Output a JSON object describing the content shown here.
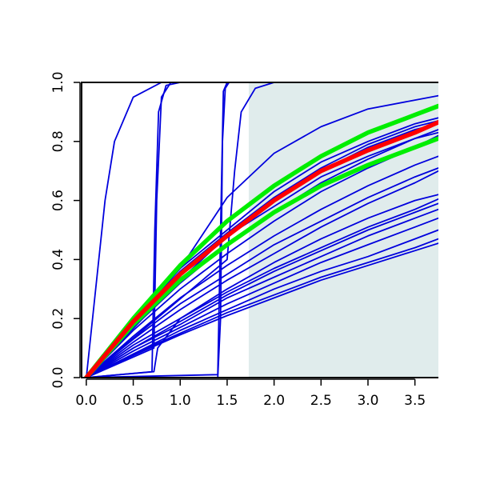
{
  "chart_data": {
    "type": "line",
    "title": "",
    "xlabel": "",
    "ylabel": "",
    "xlim": [
      -0.05,
      3.75
    ],
    "ylim": [
      0,
      1
    ],
    "x_ticks": [
      0.0,
      0.5,
      1.0,
      1.5,
      2.0,
      2.5,
      3.0,
      3.5
    ],
    "x_tick_labels": [
      "0.0",
      "0.5",
      "1.0",
      "1.5",
      "2.0",
      "2.5",
      "3.0",
      "3.5"
    ],
    "y_ticks": [
      0.0,
      0.2,
      0.4,
      0.6,
      0.8,
      1.0
    ],
    "y_tick_labels": [
      "0.0",
      "0.2",
      "0.4",
      "0.6",
      "0.8",
      "1.0"
    ],
    "shaded_region": {
      "x_from": 1.73,
      "x_to": 3.75,
      "color": "#e0ecec"
    },
    "grid": false,
    "legend": "none",
    "colors": {
      "blue": "#0000dd",
      "red": "#ff0000",
      "green": "#00ee00"
    },
    "series": [
      {
        "color": "blue",
        "points": [
          [
            0.0,
            0.0
          ],
          [
            0.2,
            0.6
          ],
          [
            0.3,
            0.8
          ],
          [
            0.5,
            0.95
          ],
          [
            0.8,
            1.0
          ],
          [
            3.75,
            1.0
          ]
        ]
      },
      {
        "color": "blue",
        "points": [
          [
            0.0,
            0.0
          ],
          [
            0.7,
            0.02
          ],
          [
            0.73,
            0.5
          ],
          [
            0.77,
            0.9
          ],
          [
            0.85,
            0.99
          ],
          [
            1.0,
            1.0
          ],
          [
            3.75,
            1.0
          ]
        ]
      },
      {
        "color": "blue",
        "points": [
          [
            0.0,
            0.0
          ],
          [
            0.72,
            0.1
          ],
          [
            0.75,
            0.6
          ],
          [
            0.8,
            0.95
          ],
          [
            0.9,
            1.0
          ],
          [
            3.75,
            1.0
          ]
        ]
      },
      {
        "color": "blue",
        "points": [
          [
            0.0,
            0.0
          ],
          [
            1.4,
            0.01
          ],
          [
            1.43,
            0.5
          ],
          [
            1.46,
            0.97
          ],
          [
            1.5,
            1.0
          ],
          [
            3.75,
            1.0
          ]
        ]
      },
      {
        "color": "blue",
        "points": [
          [
            0.0,
            0.0
          ],
          [
            1.4,
            0.0
          ],
          [
            1.43,
            0.2
          ],
          [
            1.45,
            0.8
          ],
          [
            1.48,
            0.98
          ],
          [
            1.52,
            1.0
          ],
          [
            3.75,
            1.0
          ]
        ]
      },
      {
        "color": "blue",
        "points": [
          [
            0.0,
            0.0
          ],
          [
            1.5,
            0.4
          ],
          [
            1.58,
            0.7
          ],
          [
            1.65,
            0.9
          ],
          [
            1.8,
            0.98
          ],
          [
            2.0,
            1.0
          ],
          [
            3.75,
            1.0
          ]
        ]
      },
      {
        "color": "blue",
        "points": [
          [
            0.0,
            0.0
          ],
          [
            1.0,
            0.37
          ],
          [
            1.5,
            0.61
          ],
          [
            2.0,
            0.76
          ],
          [
            2.5,
            0.85
          ],
          [
            3.0,
            0.91
          ],
          [
            3.5,
            0.94
          ],
          [
            3.75,
            0.955
          ]
        ]
      },
      {
        "color": "blue",
        "points": [
          [
            0.0,
            0.0
          ],
          [
            0.5,
            0.2
          ],
          [
            1.0,
            0.37
          ],
          [
            1.5,
            0.5
          ],
          [
            2.0,
            0.63
          ],
          [
            2.5,
            0.73
          ],
          [
            3.0,
            0.8
          ],
          [
            3.5,
            0.86
          ],
          [
            3.75,
            0.88
          ]
        ]
      },
      {
        "color": "blue",
        "points": [
          [
            0.0,
            0.0
          ],
          [
            0.5,
            0.19
          ],
          [
            1.0,
            0.36
          ],
          [
            1.5,
            0.49
          ],
          [
            2.0,
            0.61
          ],
          [
            2.5,
            0.71
          ],
          [
            3.0,
            0.79
          ],
          [
            3.5,
            0.85
          ],
          [
            3.75,
            0.87
          ]
        ]
      },
      {
        "color": "blue",
        "points": [
          [
            0.0,
            0.0
          ],
          [
            0.5,
            0.18
          ],
          [
            1.0,
            0.35
          ],
          [
            1.5,
            0.48
          ],
          [
            2.0,
            0.6
          ],
          [
            2.5,
            0.7
          ],
          [
            3.0,
            0.78
          ],
          [
            3.5,
            0.84
          ],
          [
            3.75,
            0.86
          ]
        ]
      },
      {
        "color": "blue",
        "points": [
          [
            0.0,
            0.0
          ],
          [
            0.5,
            0.17
          ],
          [
            1.0,
            0.32
          ],
          [
            1.5,
            0.45
          ],
          [
            2.0,
            0.56
          ],
          [
            2.5,
            0.66
          ],
          [
            3.0,
            0.74
          ],
          [
            3.5,
            0.81
          ],
          [
            3.75,
            0.84
          ]
        ]
      },
      {
        "color": "blue",
        "points": [
          [
            0.0,
            0.0
          ],
          [
            0.5,
            0.16
          ],
          [
            1.0,
            0.3
          ],
          [
            1.5,
            0.42
          ],
          [
            2.0,
            0.53
          ],
          [
            2.5,
            0.63
          ],
          [
            3.0,
            0.71
          ],
          [
            3.5,
            0.78
          ],
          [
            3.75,
            0.82
          ]
        ]
      },
      {
        "color": "blue",
        "points": [
          [
            0.0,
            0.0
          ],
          [
            0.5,
            0.14
          ],
          [
            1.0,
            0.27
          ],
          [
            1.5,
            0.38
          ],
          [
            2.0,
            0.48
          ],
          [
            2.5,
            0.57
          ],
          [
            3.0,
            0.65
          ],
          [
            3.5,
            0.72
          ],
          [
            3.75,
            0.75
          ]
        ]
      },
      {
        "color": "blue",
        "points": [
          [
            0.0,
            0.0
          ],
          [
            0.5,
            0.13
          ],
          [
            1.0,
            0.25
          ],
          [
            1.5,
            0.35
          ],
          [
            2.0,
            0.45
          ],
          [
            2.5,
            0.53
          ],
          [
            3.0,
            0.61
          ],
          [
            3.5,
            0.68
          ],
          [
            3.75,
            0.71
          ]
        ]
      },
      {
        "color": "blue",
        "points": [
          [
            0.0,
            0.0
          ],
          [
            0.5,
            0.12
          ],
          [
            1.0,
            0.23
          ],
          [
            1.5,
            0.33
          ],
          [
            2.0,
            0.42
          ],
          [
            2.5,
            0.51
          ],
          [
            3.0,
            0.59
          ],
          [
            3.5,
            0.66
          ],
          [
            3.75,
            0.7
          ]
        ]
      },
      {
        "color": "blue",
        "points": [
          [
            0.0,
            0.0
          ],
          [
            0.5,
            0.11
          ],
          [
            1.0,
            0.2
          ],
          [
            1.5,
            0.29
          ],
          [
            2.0,
            0.37
          ],
          [
            2.5,
            0.44
          ],
          [
            3.0,
            0.51
          ],
          [
            3.5,
            0.57
          ],
          [
            3.75,
            0.605
          ]
        ]
      },
      {
        "color": "blue",
        "points": [
          [
            0.0,
            0.0
          ],
          [
            0.5,
            0.1
          ],
          [
            1.0,
            0.19
          ],
          [
            1.5,
            0.28
          ],
          [
            2.0,
            0.36
          ],
          [
            2.5,
            0.43
          ],
          [
            3.0,
            0.5
          ],
          [
            3.5,
            0.56
          ],
          [
            3.75,
            0.59
          ]
        ]
      },
      {
        "color": "blue",
        "points": [
          [
            0.0,
            0.0
          ],
          [
            0.5,
            0.1
          ],
          [
            1.0,
            0.18
          ],
          [
            1.5,
            0.27
          ],
          [
            2.0,
            0.34
          ],
          [
            2.5,
            0.41
          ],
          [
            3.0,
            0.48
          ],
          [
            3.5,
            0.54
          ],
          [
            3.75,
            0.57
          ]
        ]
      },
      {
        "color": "blue",
        "points": [
          [
            0.0,
            0.0
          ],
          [
            0.5,
            0.09
          ],
          [
            1.0,
            0.17
          ],
          [
            1.5,
            0.25
          ],
          [
            2.0,
            0.32
          ],
          [
            2.5,
            0.39
          ],
          [
            3.0,
            0.45
          ],
          [
            3.5,
            0.51
          ],
          [
            3.75,
            0.54
          ]
        ]
      },
      {
        "color": "blue",
        "points": [
          [
            0.0,
            0.0
          ],
          [
            0.5,
            0.08
          ],
          [
            1.0,
            0.16
          ],
          [
            1.5,
            0.23
          ],
          [
            2.0,
            0.3
          ],
          [
            2.5,
            0.36
          ],
          [
            3.0,
            0.41
          ],
          [
            3.5,
            0.47
          ],
          [
            3.75,
            0.5
          ]
        ]
      },
      {
        "color": "blue",
        "points": [
          [
            0.0,
            0.0
          ],
          [
            0.5,
            0.08
          ],
          [
            1.0,
            0.15
          ],
          [
            1.5,
            0.22
          ],
          [
            2.0,
            0.28
          ],
          [
            2.5,
            0.34
          ],
          [
            3.0,
            0.39
          ],
          [
            3.5,
            0.44
          ],
          [
            3.75,
            0.47
          ]
        ]
      },
      {
        "color": "blue",
        "points": [
          [
            0.0,
            0.0
          ],
          [
            0.5,
            0.075
          ],
          [
            1.0,
            0.145
          ],
          [
            1.5,
            0.21
          ],
          [
            2.0,
            0.27
          ],
          [
            2.5,
            0.33
          ],
          [
            3.0,
            0.38
          ],
          [
            3.5,
            0.43
          ],
          [
            3.75,
            0.455
          ]
        ]
      },
      {
        "color": "blue",
        "points": [
          [
            0.0,
            0.0
          ],
          [
            0.72,
            0.02
          ],
          [
            0.76,
            0.1
          ],
          [
            1.0,
            0.2
          ],
          [
            1.5,
            0.3
          ],
          [
            2.0,
            0.39
          ],
          [
            2.5,
            0.47
          ],
          [
            3.0,
            0.54
          ],
          [
            3.5,
            0.6
          ],
          [
            3.75,
            0.62
          ]
        ]
      },
      {
        "color": "blue",
        "points": [
          [
            0.0,
            0.0
          ],
          [
            0.6,
            0.2
          ],
          [
            1.0,
            0.33
          ],
          [
            1.5,
            0.48
          ],
          [
            2.0,
            0.58
          ],
          [
            2.5,
            0.68
          ],
          [
            3.0,
            0.75
          ],
          [
            3.5,
            0.81
          ],
          [
            3.75,
            0.83
          ]
        ]
      },
      {
        "color": "green",
        "points": [
          [
            0.0,
            0.0
          ],
          [
            0.5,
            0.2
          ],
          [
            1.0,
            0.38
          ],
          [
            1.5,
            0.53
          ],
          [
            2.0,
            0.65
          ],
          [
            2.5,
            0.75
          ],
          [
            3.0,
            0.83
          ],
          [
            3.5,
            0.89
          ],
          [
            3.75,
            0.92
          ]
        ]
      },
      {
        "color": "green",
        "points": [
          [
            0.0,
            0.0
          ],
          [
            0.5,
            0.18
          ],
          [
            1.0,
            0.33
          ],
          [
            1.5,
            0.45
          ],
          [
            2.0,
            0.56
          ],
          [
            2.5,
            0.65
          ],
          [
            3.0,
            0.72
          ],
          [
            3.5,
            0.78
          ],
          [
            3.75,
            0.81
          ]
        ]
      },
      {
        "color": "red",
        "points": [
          [
            0.0,
            0.0
          ],
          [
            0.5,
            0.19
          ],
          [
            1.0,
            0.35
          ],
          [
            1.5,
            0.48
          ],
          [
            2.0,
            0.6
          ],
          [
            2.5,
            0.7
          ],
          [
            3.0,
            0.77
          ],
          [
            3.5,
            0.83
          ],
          [
            3.75,
            0.865
          ]
        ]
      }
    ]
  }
}
